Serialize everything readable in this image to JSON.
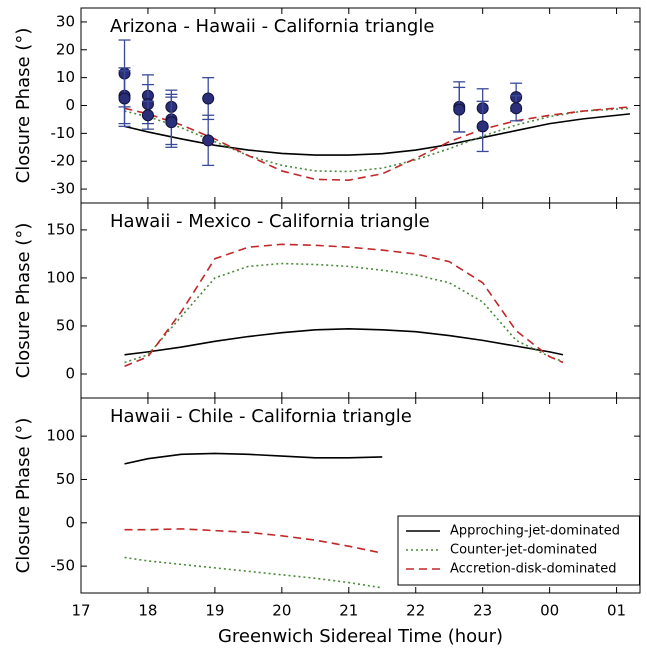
{
  "chart_data": [
    {
      "type": "line",
      "title": "Arizona - Hawaii - California triangle",
      "ylabel": "Closure Phase (°)",
      "xlim": [
        17,
        25.35
      ],
      "ylim": [
        -35,
        35
      ],
      "yticks": [
        -30,
        -20,
        -10,
        0,
        10,
        20,
        30
      ],
      "series": [
        {
          "color": "#000000",
          "linestyle": "solid",
          "x": [
            17.65,
            18,
            18.5,
            19,
            19.5,
            20,
            20.5,
            21,
            21.5,
            22,
            22.5,
            23,
            23.5,
            24,
            24.5,
            25.2
          ],
          "values": [
            -7.5,
            -9.5,
            -12,
            -14.3,
            -16,
            -17.2,
            -17.8,
            -17.8,
            -17.3,
            -16,
            -14,
            -11.5,
            -9,
            -6.5,
            -4.8,
            -3
          ]
        },
        {
          "color": "#4a8a3a",
          "linestyle": "dotted",
          "x": [
            17.65,
            18,
            18.5,
            19,
            19.5,
            20,
            20.5,
            21,
            21.5,
            22,
            22.5,
            23,
            23.5,
            24,
            24.5,
            25.2
          ],
          "values": [
            -2,
            -4,
            -8,
            -13,
            -18,
            -21.5,
            -23.5,
            -23.7,
            -22.5,
            -19.5,
            -15.5,
            -11,
            -7,
            -4,
            -2,
            -1
          ]
        },
        {
          "color": "#c0282a",
          "linestyle": "dashed",
          "x": [
            17.65,
            18,
            18.5,
            19,
            19.5,
            20,
            20.5,
            21,
            21.5,
            22,
            22.5,
            23,
            23.5,
            24,
            24.5,
            25.2
          ],
          "values": [
            -1,
            -3,
            -7,
            -12,
            -18,
            -23.5,
            -26.5,
            -26.8,
            -24.5,
            -19,
            -13,
            -8.5,
            -5.5,
            -3.5,
            -2,
            -0.5
          ]
        },
        {
          "color": "#2b2f7a",
          "linestyle": "points",
          "x": [
            17.65,
            17.65,
            17.65,
            18,
            18,
            18,
            18.35,
            18.35,
            18.35,
            18.9,
            18.9,
            22.65,
            22.65,
            23,
            23,
            23.5,
            23.5
          ],
          "values": [
            11.5,
            3.5,
            2.5,
            3.5,
            0.5,
            -3.5,
            -0.5,
            -5,
            -6,
            2.5,
            -12.5,
            -0.5,
            -1.5,
            -1,
            -7.5,
            3,
            -1
          ],
          "errors": [
            12,
            10,
            10,
            7.5,
            7,
            5,
            6,
            9,
            9,
            7.5,
            9,
            9,
            8,
            7,
            9,
            5,
            4.5
          ]
        }
      ]
    },
    {
      "type": "line",
      "title": "Hawaii - Mexico - California triangle",
      "ylabel": "Closure Phase (°)",
      "xlim": [
        17,
        25.35
      ],
      "ylim": [
        -25,
        178
      ],
      "yticks": [
        0,
        50,
        100,
        150
      ],
      "series": [
        {
          "color": "#000000",
          "linestyle": "solid",
          "x": [
            17.65,
            18,
            18.5,
            19,
            19.5,
            20,
            20.5,
            21,
            21.5,
            22,
            22.5,
            23,
            23.5,
            24,
            24.2
          ],
          "values": [
            20,
            23,
            28,
            34,
            39,
            43,
            46,
            47,
            46,
            44,
            40,
            35,
            29,
            23,
            20
          ]
        },
        {
          "color": "#4a8a3a",
          "linestyle": "dotted",
          "x": [
            17.65,
            18,
            18.5,
            19,
            19.5,
            20,
            20.5,
            21,
            21.5,
            22,
            22.5,
            23,
            23.5,
            24,
            24.2
          ],
          "values": [
            12,
            20,
            60,
            100,
            112,
            115,
            114,
            112,
            108,
            103,
            95,
            75,
            35,
            18,
            13
          ]
        },
        {
          "color": "#c0282a",
          "linestyle": "dashed",
          "x": [
            17.65,
            18,
            18.5,
            19,
            19.5,
            20,
            20.5,
            21,
            21.5,
            22,
            22.5,
            23,
            23.5,
            24,
            24.2
          ],
          "values": [
            8,
            18,
            65,
            120,
            132,
            135,
            134,
            132,
            129,
            125,
            117,
            95,
            45,
            18,
            12
          ]
        }
      ]
    },
    {
      "type": "line",
      "title": "Hawaii - Chile - California triangle",
      "ylabel": "Closure Phase (°)",
      "xlabel": "Greenwich Sidereal Time (hour)",
      "xlim": [
        17,
        25.35
      ],
      "ylim": [
        -81,
        144
      ],
      "yticks": [
        -50,
        0,
        50,
        100
      ],
      "xticks": [
        17,
        18,
        19,
        20,
        21,
        22,
        23,
        {
          "value": 24,
          "label": "00"
        },
        {
          "value": 25,
          "label": "01"
        }
      ],
      "legend": "lower right",
      "series": [
        {
          "name": "Approching-jet-dominated",
          "color": "#000000",
          "linestyle": "solid",
          "x": [
            17.65,
            18,
            18.5,
            19,
            19.5,
            20,
            20.5,
            21,
            21.5
          ],
          "values": [
            68,
            74,
            79,
            80,
            79,
            77,
            75,
            75,
            76
          ]
        },
        {
          "name": "Counter-jet-dominated",
          "color": "#4a8a3a",
          "linestyle": "dotted",
          "x": [
            17.65,
            18,
            18.5,
            19,
            19.5,
            20,
            20.5,
            21,
            21.5
          ],
          "values": [
            -40,
            -44,
            -48,
            -52,
            -56,
            -60,
            -64,
            -69,
            -75
          ]
        },
        {
          "name": "Accretion-disk-dominated",
          "color": "#c0282a",
          "linestyle": "dashed",
          "x": [
            17.65,
            18,
            18.5,
            19,
            19.5,
            20,
            20.5,
            21,
            21.5
          ],
          "values": [
            -8,
            -8,
            -7,
            -9,
            -11,
            -15,
            -20,
            -27,
            -35
          ]
        }
      ]
    }
  ]
}
